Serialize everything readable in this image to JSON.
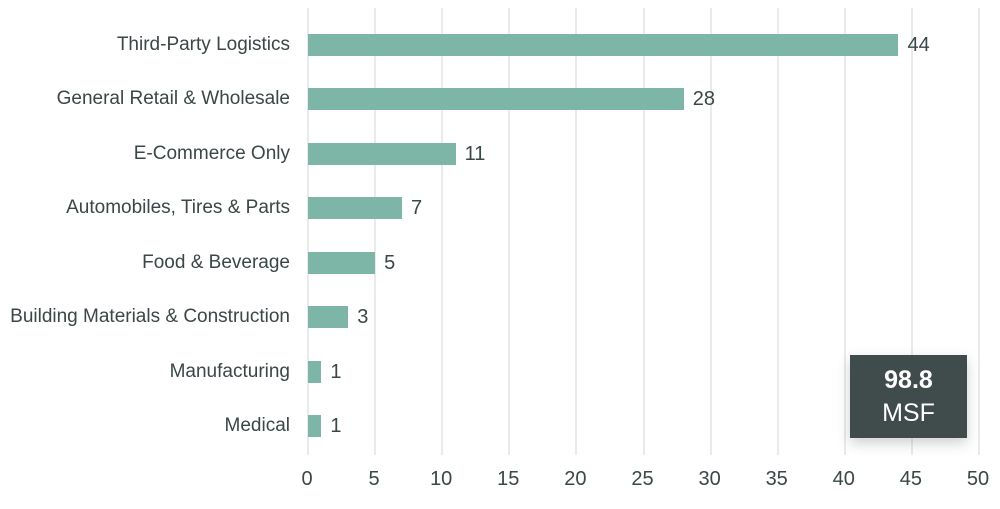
{
  "chart_data": {
    "type": "bar",
    "orientation": "horizontal",
    "title": "",
    "xlabel": "",
    "ylabel": "",
    "categories": [
      "Third-Party Logistics",
      "General Retail & Wholesale",
      "E-Commerce Only",
      "Automobiles, Tires & Parts",
      "Food & Beverage",
      "Building Materials & Construction",
      "Manufacturing",
      "Medical"
    ],
    "values": [
      44,
      28,
      11,
      7,
      5,
      3,
      1,
      1
    ],
    "value_labels": [
      "44",
      "28",
      "11",
      "7",
      "5",
      "3",
      "1",
      "1"
    ],
    "xlim": [
      0,
      50
    ],
    "x_ticks": [
      "0",
      "5",
      "10",
      "15",
      "20",
      "25",
      "30",
      "35",
      "40",
      "45",
      "50"
    ],
    "grid": "vertical",
    "legend": "none",
    "annotation": {
      "value": "98.8",
      "unit": "MSF"
    }
  },
  "colors": {
    "bar": "#7db6a6",
    "grid": "#e9ebeb",
    "text": "#3b4647",
    "badge_bg": "#3f4c4b",
    "badge_text": "#ffffff"
  }
}
